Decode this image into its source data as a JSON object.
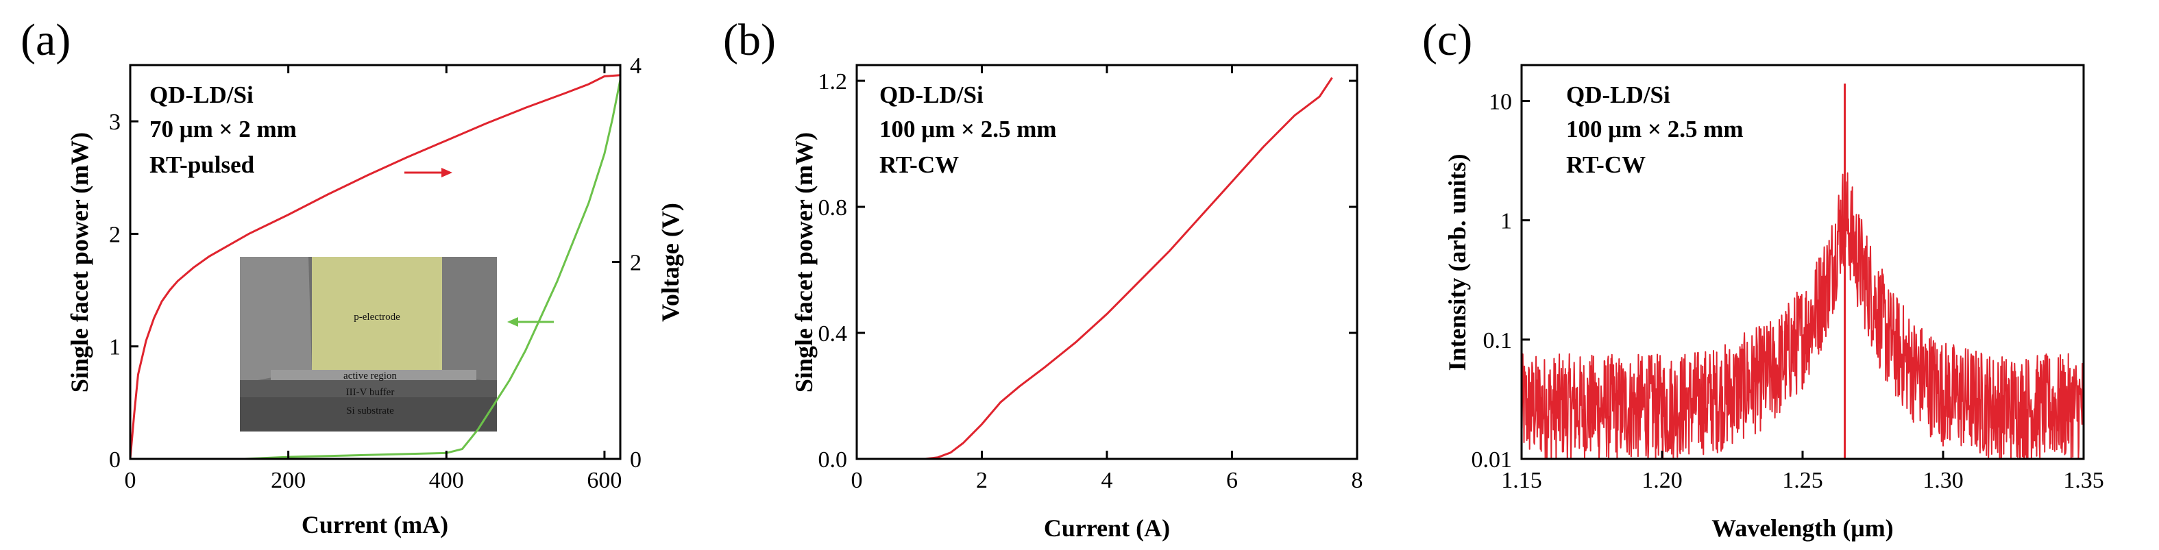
{
  "colors": {
    "power": "#e0242e",
    "voltage": "#6cc24a",
    "spectrum": "#e0242e"
  },
  "chart_data": [
    {
      "panel": "(a)",
      "type": "line",
      "xlabel": "Current (mA)",
      "ylabel": "Single facet power (mW)",
      "y2label": "Voltage (V)",
      "xlim": [
        0,
        620
      ],
      "ylim": [
        0,
        3.5
      ],
      "y2lim": [
        0,
        4
      ],
      "xticks": [
        0,
        200,
        400,
        600
      ],
      "yticks": [
        0,
        1,
        2,
        3
      ],
      "y2ticks": [
        0,
        2,
        4
      ],
      "annotations": [
        "QD-LD/Si",
        "70 μm × 2 mm",
        "RT-pulsed"
      ],
      "inset_labels": [
        "p-electrode",
        "active region",
        "III-V buffer",
        "Si substrate"
      ],
      "series": [
        {
          "name": "Power",
          "axis": "left",
          "x": [
            0,
            5,
            10,
            20,
            30,
            40,
            50,
            60,
            80,
            100,
            150,
            200,
            250,
            300,
            350,
            400,
            450,
            500,
            550,
            580,
            600,
            620
          ],
          "y": [
            0,
            0.4,
            0.75,
            1.05,
            1.25,
            1.4,
            1.5,
            1.58,
            1.7,
            1.8,
            2.0,
            2.17,
            2.35,
            2.52,
            2.68,
            2.83,
            2.98,
            3.12,
            3.25,
            3.33,
            3.4,
            3.41
          ]
        },
        {
          "name": "Voltage",
          "axis": "right",
          "x": [
            145,
            200,
            300,
            400,
            420,
            430,
            440,
            460,
            480,
            500,
            520,
            540,
            560,
            580,
            600,
            610,
            620
          ],
          "y": [
            0,
            0.02,
            0.04,
            0.06,
            0.1,
            0.2,
            0.3,
            0.55,
            0.8,
            1.1,
            1.45,
            1.8,
            2.2,
            2.6,
            3.1,
            3.45,
            3.85
          ]
        }
      ]
    },
    {
      "panel": "(b)",
      "type": "line",
      "xlabel": "Current (A)",
      "ylabel": "Single facet power (mW)",
      "xlim": [
        0,
        8
      ],
      "ylim": [
        0,
        1.25
      ],
      "xticks": [
        0,
        2,
        4,
        6,
        8
      ],
      "yticks": [
        "0.0",
        "0.4",
        "0.8",
        "1.2"
      ],
      "annotations": [
        "QD-LD/Si",
        "100 μm × 2.5 mm",
        "RT-CW"
      ],
      "series": [
        {
          "name": "Power",
          "x": [
            1.1,
            1.3,
            1.5,
            1.7,
            2.0,
            2.3,
            2.6,
            3.0,
            3.5,
            4.0,
            4.5,
            5.0,
            5.5,
            6.0,
            6.5,
            7.0,
            7.4,
            7.6
          ],
          "y": [
            0,
            0.005,
            0.02,
            0.05,
            0.11,
            0.18,
            0.23,
            0.29,
            0.37,
            0.46,
            0.56,
            0.66,
            0.77,
            0.88,
            0.99,
            1.09,
            1.15,
            1.21
          ]
        }
      ]
    },
    {
      "panel": "(c)",
      "type": "line",
      "yscale": "log",
      "xlabel": "Wavelength (μm)",
      "ylabel": "Intensity (arb. units)",
      "xlim": [
        1.15,
        1.35
      ],
      "ylim": [
        0.01,
        20
      ],
      "xticks": [
        "1.15",
        "1.20",
        "1.25",
        "1.30",
        "1.35"
      ],
      "yticks": [
        "0.01",
        "0.1",
        "1",
        "10"
      ],
      "annotations": [
        "QD-LD/Si",
        "100 μm × 2.5 mm",
        "RT-CW"
      ],
      "peak": {
        "x": 1.265,
        "y": 14
      },
      "envelope": {
        "x": [
          1.15,
          1.2,
          1.22,
          1.24,
          1.25,
          1.255,
          1.26,
          1.263,
          1.265,
          1.267,
          1.27,
          1.275,
          1.28,
          1.29,
          1.3,
          1.32,
          1.35
        ],
        "y": [
          0.03,
          0.03,
          0.035,
          0.06,
          0.12,
          0.2,
          0.4,
          0.9,
          1.3,
          0.9,
          0.5,
          0.25,
          0.12,
          0.06,
          0.04,
          0.03,
          0.03
        ]
      }
    }
  ]
}
